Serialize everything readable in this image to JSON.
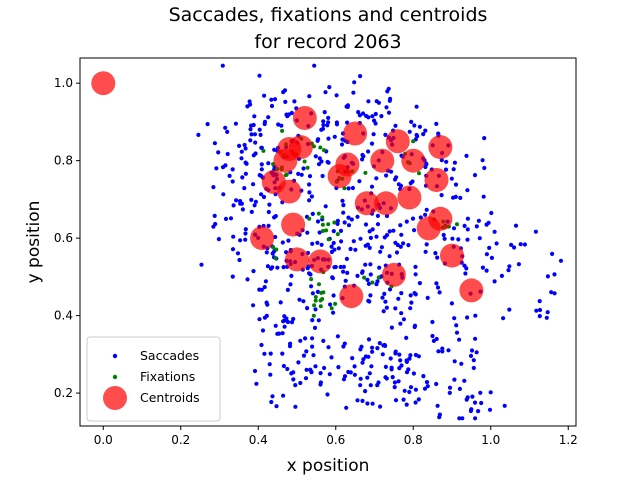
{
  "chart_data": {
    "type": "scatter",
    "title_lines": [
      "Saccades, fixations and centroids",
      "for record 2063"
    ],
    "xlabel": "x position",
    "ylabel": "y position",
    "xlim": [
      -0.06,
      1.22
    ],
    "ylim": [
      0.115,
      1.065
    ],
    "x_ticks": [
      0.0,
      0.2,
      0.4,
      0.6,
      0.8,
      1.0,
      1.2
    ],
    "x_tick_labels": [
      "0.0",
      "0.2",
      "0.4",
      "0.6",
      "0.8",
      "1.0",
      "1.2"
    ],
    "y_ticks": [
      0.2,
      0.4,
      0.6,
      0.8,
      1.0
    ],
    "y_tick_labels": [
      "0.2",
      "0.4",
      "0.6",
      "0.8",
      "1.0"
    ],
    "grid": false,
    "legend_position": "lower-left",
    "series": [
      {
        "name": "Saccades",
        "color": "#0000ff",
        "marker": "small-dot",
        "clusters": [
          {
            "center": [
              0.5,
              0.88
            ],
            "spread": [
              0.1,
              0.07
            ],
            "count": 70
          },
          {
            "center": [
              0.7,
              0.9
            ],
            "spread": [
              0.09,
              0.05
            ],
            "count": 55
          },
          {
            "center": [
              0.85,
              0.8
            ],
            "spread": [
              0.07,
              0.06
            ],
            "count": 40
          },
          {
            "center": [
              0.4,
              0.78
            ],
            "spread": [
              0.06,
              0.06
            ],
            "count": 35
          },
          {
            "center": [
              0.36,
              0.65
            ],
            "spread": [
              0.05,
              0.05
            ],
            "count": 25
          },
          {
            "center": [
              0.55,
              0.75
            ],
            "spread": [
              0.1,
              0.08
            ],
            "count": 55
          },
          {
            "center": [
              0.75,
              0.65
            ],
            "spread": [
              0.1,
              0.07
            ],
            "count": 55
          },
          {
            "center": [
              0.95,
              0.62
            ],
            "spread": [
              0.06,
              0.05
            ],
            "count": 25
          },
          {
            "center": [
              1.05,
              0.52
            ],
            "spread": [
              0.06,
              0.07
            ],
            "count": 15
          },
          {
            "center": [
              1.13,
              0.43
            ],
            "spread": [
              0.03,
              0.04
            ],
            "count": 8
          },
          {
            "center": [
              0.55,
              0.5
            ],
            "spread": [
              0.1,
              0.06
            ],
            "count": 60
          },
          {
            "center": [
              0.75,
              0.48
            ],
            "spread": [
              0.08,
              0.06
            ],
            "count": 45
          },
          {
            "center": [
              0.92,
              0.45
            ],
            "spread": [
              0.06,
              0.06
            ],
            "count": 20
          },
          {
            "center": [
              0.48,
              0.38
            ],
            "spread": [
              0.06,
              0.05
            ],
            "count": 25
          },
          {
            "center": [
              0.62,
              0.32
            ],
            "spread": [
              0.08,
              0.05
            ],
            "count": 35
          },
          {
            "center": [
              0.75,
              0.3
            ],
            "spread": [
              0.05,
              0.05
            ],
            "count": 20
          },
          {
            "center": [
              0.85,
              0.28
            ],
            "spread": [
              0.06,
              0.03
            ],
            "count": 25
          },
          {
            "center": [
              0.5,
              0.22
            ],
            "spread": [
              0.05,
              0.04
            ],
            "count": 25
          },
          {
            "center": [
              0.66,
              0.22
            ],
            "spread": [
              0.04,
              0.05
            ],
            "count": 20
          },
          {
            "center": [
              0.8,
              0.21
            ],
            "spread": [
              0.05,
              0.04
            ],
            "count": 20
          },
          {
            "center": [
              0.97,
              0.18
            ],
            "spread": [
              0.05,
              0.03
            ],
            "count": 15
          },
          {
            "center": [
              0.45,
              0.55
            ],
            "spread": [
              0.05,
              0.05
            ],
            "count": 30
          },
          {
            "center": [
              0.62,
              0.6
            ],
            "spread": [
              0.06,
              0.05
            ],
            "count": 30
          }
        ]
      },
      {
        "name": "Fixations",
        "color": "#008000",
        "marker": "small-dot",
        "clusters": [
          {
            "center": [
              0.47,
              0.82
            ],
            "spread": [
              0.02,
              0.03
            ],
            "count": 14
          },
          {
            "center": [
              0.53,
              0.84
            ],
            "spread": [
              0.02,
              0.02
            ],
            "count": 8
          },
          {
            "center": [
              0.57,
              0.62
            ],
            "spread": [
              0.02,
              0.02
            ],
            "count": 10
          },
          {
            "center": [
              0.55,
              0.46
            ],
            "spread": [
              0.02,
              0.03
            ],
            "count": 14
          },
          {
            "center": [
              0.62,
              0.77
            ],
            "spread": [
              0.02,
              0.02
            ],
            "count": 8
          },
          {
            "center": [
              0.77,
              0.8
            ],
            "spread": [
              0.02,
              0.02
            ],
            "count": 6
          },
          {
            "center": [
              0.87,
              0.62
            ],
            "spread": [
              0.02,
              0.02
            ],
            "count": 6
          },
          {
            "center": [
              0.44,
              0.57
            ],
            "spread": [
              0.01,
              0.01
            ],
            "count": 3
          },
          {
            "center": [
              0.72,
              0.5
            ],
            "spread": [
              0.02,
              0.02
            ],
            "count": 4
          }
        ]
      },
      {
        "name": "Centroids",
        "color": "#ff0000",
        "marker": "large-circle",
        "points": [
          [
            0.0,
            1.0
          ],
          [
            0.52,
            0.91
          ],
          [
            0.65,
            0.87
          ],
          [
            0.76,
            0.85
          ],
          [
            0.48,
            0.83
          ],
          [
            0.51,
            0.835
          ],
          [
            0.47,
            0.8
          ],
          [
            0.63,
            0.79
          ],
          [
            0.72,
            0.8
          ],
          [
            0.8,
            0.8
          ],
          [
            0.87,
            0.835
          ],
          [
            0.61,
            0.76
          ],
          [
            0.44,
            0.745
          ],
          [
            0.48,
            0.72
          ],
          [
            0.86,
            0.75
          ],
          [
            0.68,
            0.69
          ],
          [
            0.73,
            0.69
          ],
          [
            0.79,
            0.705
          ],
          [
            0.49,
            0.635
          ],
          [
            0.87,
            0.65
          ],
          [
            0.84,
            0.625
          ],
          [
            0.41,
            0.6
          ],
          [
            0.5,
            0.545
          ],
          [
            0.56,
            0.54
          ],
          [
            0.9,
            0.555
          ],
          [
            0.75,
            0.505
          ],
          [
            0.64,
            0.45
          ],
          [
            0.95,
            0.465
          ]
        ]
      }
    ]
  }
}
